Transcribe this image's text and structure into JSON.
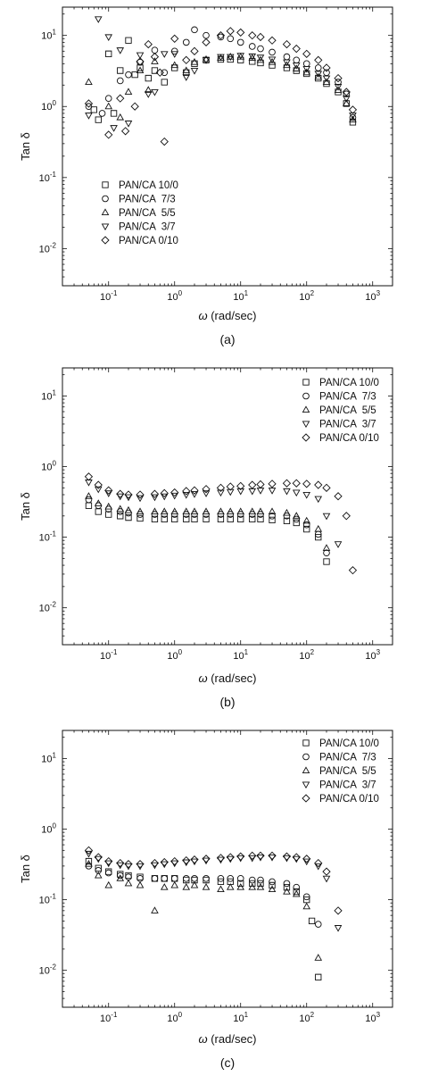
{
  "figure": {
    "ylabel": "Tan δ",
    "xlabel_symbol": "ω",
    "xlabel_unit": " (rad/sec)",
    "legend_entries": [
      "PAN/CA 10/0",
      "PAN/CA  7/3",
      "PAN/CA  5/5",
      "PAN/CA  3/7",
      "PAN/CA 0/10"
    ],
    "x_tick_labels": [
      "10-1",
      "100",
      "101",
      "102",
      "103"
    ],
    "y_tick_labels": [
      "10-2",
      "10-1",
      "100",
      "101"
    ],
    "marker_color": "#111111"
  },
  "chart_data": [
    {
      "type": "scatter",
      "panel": "(a)",
      "xscale": "log",
      "yscale": "log",
      "xlim": [
        0.02,
        2000
      ],
      "ylim": [
        0.003,
        25
      ],
      "ylabel": "Tan δ",
      "xlabel": "ω (rad/sec)",
      "legend_position": "left-middle",
      "series": [
        {
          "name": "PAN/CA 10/0",
          "marker": "square",
          "x": [
            0.06,
            0.07,
            0.1,
            0.12,
            0.15,
            0.2,
            0.25,
            0.3,
            0.4,
            0.5,
            0.7,
            1,
            1.5,
            2,
            3,
            5,
            7,
            10,
            15,
            20,
            30,
            50,
            70,
            100,
            150,
            200,
            300,
            400,
            500
          ],
          "y": [
            0.9,
            0.65,
            5.5,
            0.8,
            3.2,
            8.5,
            2.8,
            3.5,
            2.5,
            3.2,
            2.2,
            3.5,
            3,
            4,
            4.5,
            4.6,
            4.6,
            4.5,
            4.3,
            4.1,
            3.8,
            3.5,
            3.2,
            2.9,
            2.5,
            2.1,
            1.6,
            1.1,
            0.6
          ]
        },
        {
          "name": "PAN/CA  7/3",
          "marker": "circle",
          "x": [
            0.05,
            0.08,
            0.1,
            0.15,
            0.2,
            0.3,
            0.5,
            0.7,
            1,
            1.5,
            2,
            3,
            5,
            7,
            10,
            15,
            20,
            30,
            50,
            70,
            100,
            150,
            200,
            300,
            400,
            500
          ],
          "y": [
            1.0,
            0.8,
            1.3,
            2.3,
            2.8,
            4.2,
            6.2,
            3.0,
            6,
            8,
            12,
            10,
            9.5,
            9,
            8,
            7,
            6.5,
            5.8,
            5,
            4.5,
            4,
            3.5,
            3,
            2.2,
            1.5,
            0.7
          ]
        },
        {
          "name": "PAN/CA  5/5",
          "marker": "triangle-up",
          "x": [
            0.05,
            0.1,
            0.15,
            0.2,
            0.3,
            0.4,
            0.5,
            1,
            1.5,
            2,
            3,
            5,
            7,
            10,
            15,
            20,
            30,
            50,
            70,
            100,
            150,
            200,
            300,
            400,
            500
          ],
          "y": [
            2.2,
            1.0,
            0.7,
            1.6,
            3.2,
            1.7,
            4.3,
            3.8,
            3.2,
            4.2,
            4.6,
            4.8,
            5,
            5,
            4.8,
            4.5,
            4.2,
            3.8,
            3.4,
            3,
            2.6,
            2.2,
            1.7,
            1.1,
            0.65
          ]
        },
        {
          "name": "PAN/CA  3/7",
          "marker": "triangle-down",
          "x": [
            0.05,
            0.07,
            0.1,
            0.12,
            0.15,
            0.2,
            0.3,
            0.4,
            0.5,
            0.7,
            1,
            1.5,
            2,
            3,
            5,
            7,
            10,
            15,
            20,
            30,
            50,
            70,
            100,
            150,
            200,
            300,
            400,
            500
          ],
          "y": [
            0.75,
            17,
            9.5,
            0.5,
            6.2,
            0.58,
            5.3,
            1.5,
            1.6,
            5.5,
            5.5,
            2.6,
            3.2,
            4.5,
            5,
            5,
            5.2,
            5.1,
            4.9,
            4.6,
            4.2,
            3.8,
            3.4,
            2.9,
            2.5,
            1.9,
            1.3,
            0.75
          ]
        },
        {
          "name": "PAN/CA 0/10",
          "marker": "diamond",
          "x": [
            0.05,
            0.1,
            0.15,
            0.18,
            0.25,
            0.3,
            0.4,
            0.5,
            0.6,
            0.7,
            1,
            1.5,
            2,
            3,
            5,
            7,
            10,
            15,
            20,
            30,
            50,
            70,
            100,
            150,
            200,
            300,
            400,
            500
          ],
          "y": [
            1.1,
            0.4,
            1.3,
            0.45,
            1.0,
            4.3,
            7.5,
            5,
            3,
            0.32,
            9,
            4.5,
            6,
            8,
            10,
            11.5,
            11,
            10,
            9.5,
            8.5,
            7.5,
            6.5,
            5.5,
            4.5,
            3.5,
            2.5,
            1.6,
            0.9
          ]
        }
      ]
    },
    {
      "type": "scatter",
      "panel": "(b)",
      "xscale": "log",
      "yscale": "log",
      "xlim": [
        0.02,
        2000
      ],
      "ylim": [
        0.003,
        25
      ],
      "ylabel": "Tan δ",
      "xlabel": "ω (rad/sec)",
      "legend_position": "top-right",
      "series": [
        {
          "name": "PAN/CA 10/0",
          "marker": "square",
          "x": [
            0.05,
            0.07,
            0.1,
            0.15,
            0.2,
            0.3,
            0.5,
            0.7,
            1,
            1.5,
            2,
            3,
            5,
            7,
            10,
            15,
            20,
            30,
            50,
            70,
            100,
            150,
            200
          ],
          "y": [
            0.28,
            0.23,
            0.21,
            0.2,
            0.19,
            0.185,
            0.18,
            0.18,
            0.18,
            0.18,
            0.18,
            0.18,
            0.18,
            0.18,
            0.18,
            0.18,
            0.18,
            0.175,
            0.17,
            0.16,
            0.13,
            0.1,
            0.045
          ]
        },
        {
          "name": "PAN/CA  7/3",
          "marker": "circle",
          "x": [
            0.05,
            0.07,
            0.1,
            0.15,
            0.2,
            0.3,
            0.5,
            0.7,
            1,
            1.5,
            2,
            3,
            5,
            7,
            10,
            15,
            20,
            30,
            50,
            70,
            100,
            150,
            200
          ],
          "y": [
            0.34,
            0.28,
            0.25,
            0.23,
            0.22,
            0.21,
            0.21,
            0.21,
            0.21,
            0.21,
            0.21,
            0.21,
            0.21,
            0.21,
            0.21,
            0.21,
            0.21,
            0.2,
            0.2,
            0.18,
            0.15,
            0.11,
            0.06
          ]
        },
        {
          "name": "PAN/CA  5/5",
          "marker": "triangle-up",
          "x": [
            0.05,
            0.07,
            0.1,
            0.15,
            0.2,
            0.3,
            0.5,
            0.7,
            1,
            1.5,
            2,
            3,
            5,
            7,
            10,
            15,
            20,
            30,
            50,
            70,
            100,
            150,
            200
          ],
          "y": [
            0.38,
            0.3,
            0.27,
            0.25,
            0.24,
            0.23,
            0.23,
            0.23,
            0.23,
            0.23,
            0.23,
            0.23,
            0.23,
            0.23,
            0.23,
            0.23,
            0.23,
            0.23,
            0.22,
            0.2,
            0.17,
            0.13,
            0.07
          ]
        },
        {
          "name": "PAN/CA  3/7",
          "marker": "triangle-down",
          "x": [
            0.05,
            0.07,
            0.1,
            0.15,
            0.2,
            0.3,
            0.5,
            0.7,
            1,
            1.5,
            2,
            3,
            5,
            7,
            10,
            15,
            20,
            30,
            50,
            70,
            100,
            150,
            200,
            300
          ],
          "y": [
            0.6,
            0.48,
            0.42,
            0.38,
            0.37,
            0.36,
            0.37,
            0.38,
            0.39,
            0.4,
            0.41,
            0.42,
            0.43,
            0.44,
            0.45,
            0.45,
            0.46,
            0.46,
            0.45,
            0.43,
            0.4,
            0.35,
            0.2,
            0.08
          ]
        },
        {
          "name": "PAN/CA 0/10",
          "marker": "diamond",
          "x": [
            0.05,
            0.07,
            0.1,
            0.15,
            0.2,
            0.3,
            0.5,
            0.7,
            1,
            1.5,
            2,
            3,
            5,
            7,
            10,
            15,
            20,
            30,
            50,
            70,
            100,
            150,
            200,
            300,
            400,
            500
          ],
          "y": [
            0.72,
            0.55,
            0.46,
            0.41,
            0.4,
            0.4,
            0.41,
            0.42,
            0.43,
            0.45,
            0.46,
            0.48,
            0.5,
            0.52,
            0.53,
            0.55,
            0.56,
            0.57,
            0.58,
            0.58,
            0.57,
            0.55,
            0.5,
            0.38,
            0.2,
            0.034
          ]
        }
      ]
    },
    {
      "type": "scatter",
      "panel": "(c)",
      "xscale": "log",
      "yscale": "log",
      "xlim": [
        0.02,
        2000
      ],
      "ylim": [
        0.003,
        25
      ],
      "ylabel": "Tan δ",
      "xlabel": "ω (rad/sec)",
      "legend_position": "top-right",
      "series": [
        {
          "name": "PAN/CA 10/0",
          "marker": "square",
          "x": [
            0.05,
            0.07,
            0.1,
            0.15,
            0.2,
            0.3,
            0.5,
            0.7,
            1,
            1.5,
            2,
            3,
            5,
            7,
            10,
            15,
            20,
            30,
            50,
            70,
            100,
            120,
            150
          ],
          "y": [
            0.35,
            0.28,
            0.25,
            0.23,
            0.22,
            0.21,
            0.2,
            0.2,
            0.2,
            0.19,
            0.19,
            0.19,
            0.18,
            0.18,
            0.17,
            0.17,
            0.17,
            0.16,
            0.15,
            0.13,
            0.1,
            0.05,
            0.008
          ]
        },
        {
          "name": "PAN/CA  7/3",
          "marker": "circle",
          "x": [
            0.05,
            0.07,
            0.1,
            0.15,
            0.2,
            0.3,
            0.5,
            0.7,
            1,
            1.5,
            2,
            3,
            5,
            7,
            10,
            15,
            20,
            30,
            50,
            70,
            100,
            150
          ],
          "y": [
            0.3,
            0.26,
            0.24,
            0.22,
            0.21,
            0.2,
            0.2,
            0.2,
            0.2,
            0.2,
            0.2,
            0.2,
            0.2,
            0.2,
            0.2,
            0.19,
            0.19,
            0.18,
            0.17,
            0.15,
            0.11,
            0.045
          ]
        },
        {
          "name": "PAN/CA  5/5",
          "marker": "triangle-up",
          "x": [
            0.05,
            0.07,
            0.1,
            0.15,
            0.2,
            0.3,
            0.5,
            0.7,
            1,
            1.5,
            2,
            3,
            5,
            7,
            10,
            15,
            20,
            30,
            50,
            70,
            100,
            150
          ],
          "y": [
            0.32,
            0.22,
            0.16,
            0.2,
            0.17,
            0.16,
            0.07,
            0.15,
            0.16,
            0.15,
            0.16,
            0.15,
            0.14,
            0.15,
            0.15,
            0.15,
            0.15,
            0.14,
            0.13,
            0.12,
            0.08,
            0.015
          ]
        },
        {
          "name": "PAN/CA  3/7",
          "marker": "triangle-down",
          "x": [
            0.05,
            0.07,
            0.1,
            0.15,
            0.2,
            0.3,
            0.5,
            0.7,
            1,
            1.5,
            2,
            3,
            5,
            7,
            10,
            15,
            20,
            30,
            50,
            70,
            100,
            150,
            200,
            300
          ],
          "y": [
            0.45,
            0.38,
            0.33,
            0.31,
            0.3,
            0.3,
            0.31,
            0.32,
            0.33,
            0.34,
            0.35,
            0.36,
            0.37,
            0.38,
            0.39,
            0.39,
            0.4,
            0.4,
            0.39,
            0.38,
            0.35,
            0.3,
            0.2,
            0.04
          ]
        },
        {
          "name": "PAN/CA 0/10",
          "marker": "diamond",
          "x": [
            0.05,
            0.07,
            0.1,
            0.15,
            0.2,
            0.3,
            0.5,
            0.7,
            1,
            1.5,
            2,
            3,
            5,
            7,
            10,
            15,
            20,
            30,
            50,
            70,
            100,
            150,
            200,
            300
          ],
          "y": [
            0.5,
            0.4,
            0.35,
            0.33,
            0.32,
            0.32,
            0.33,
            0.34,
            0.35,
            0.36,
            0.37,
            0.38,
            0.39,
            0.4,
            0.41,
            0.42,
            0.42,
            0.42,
            0.41,
            0.4,
            0.38,
            0.33,
            0.25,
            0.07
          ]
        }
      ]
    }
  ]
}
